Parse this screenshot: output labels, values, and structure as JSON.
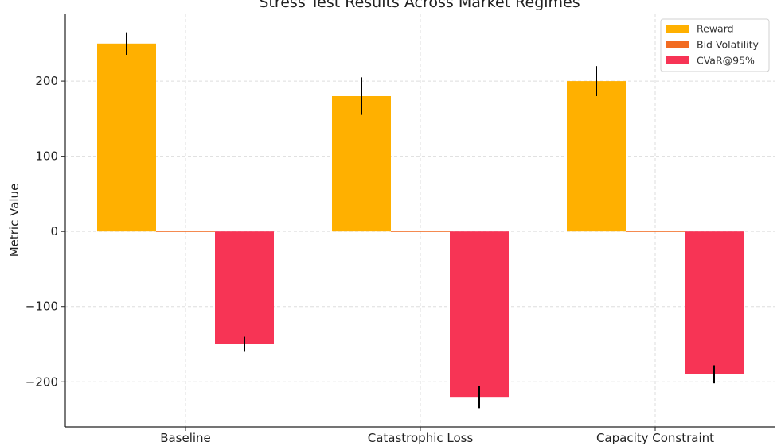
{
  "chart_data": {
    "type": "bar",
    "title": "Stress Test Results Across Market Regimes",
    "xlabel": "",
    "ylabel": "Metric Value",
    "categories": [
      "Baseline",
      "Catastrophic Loss",
      "Capacity Constraint"
    ],
    "series": [
      {
        "name": "Reward",
        "color": "#FFB000",
        "values": [
          250,
          180,
          200
        ],
        "errors": [
          15,
          25,
          20
        ]
      },
      {
        "name": "Bid Volatility",
        "color": "#F26B21",
        "values": [
          0,
          0,
          0
        ],
        "errors": [
          0,
          0,
          0
        ]
      },
      {
        "name": "CVaR@95%",
        "color": "#F73455",
        "values": [
          -150,
          -220,
          -190
        ],
        "errors": [
          10,
          15,
          12
        ]
      }
    ],
    "ylim": [
      -260,
      290
    ],
    "yticks": [
      -200,
      -100,
      0,
      100,
      200
    ],
    "ytick_labels": [
      "−200",
      "−100",
      "0",
      "100",
      "200"
    ],
    "grid": true,
    "legend_position": "top-right"
  }
}
